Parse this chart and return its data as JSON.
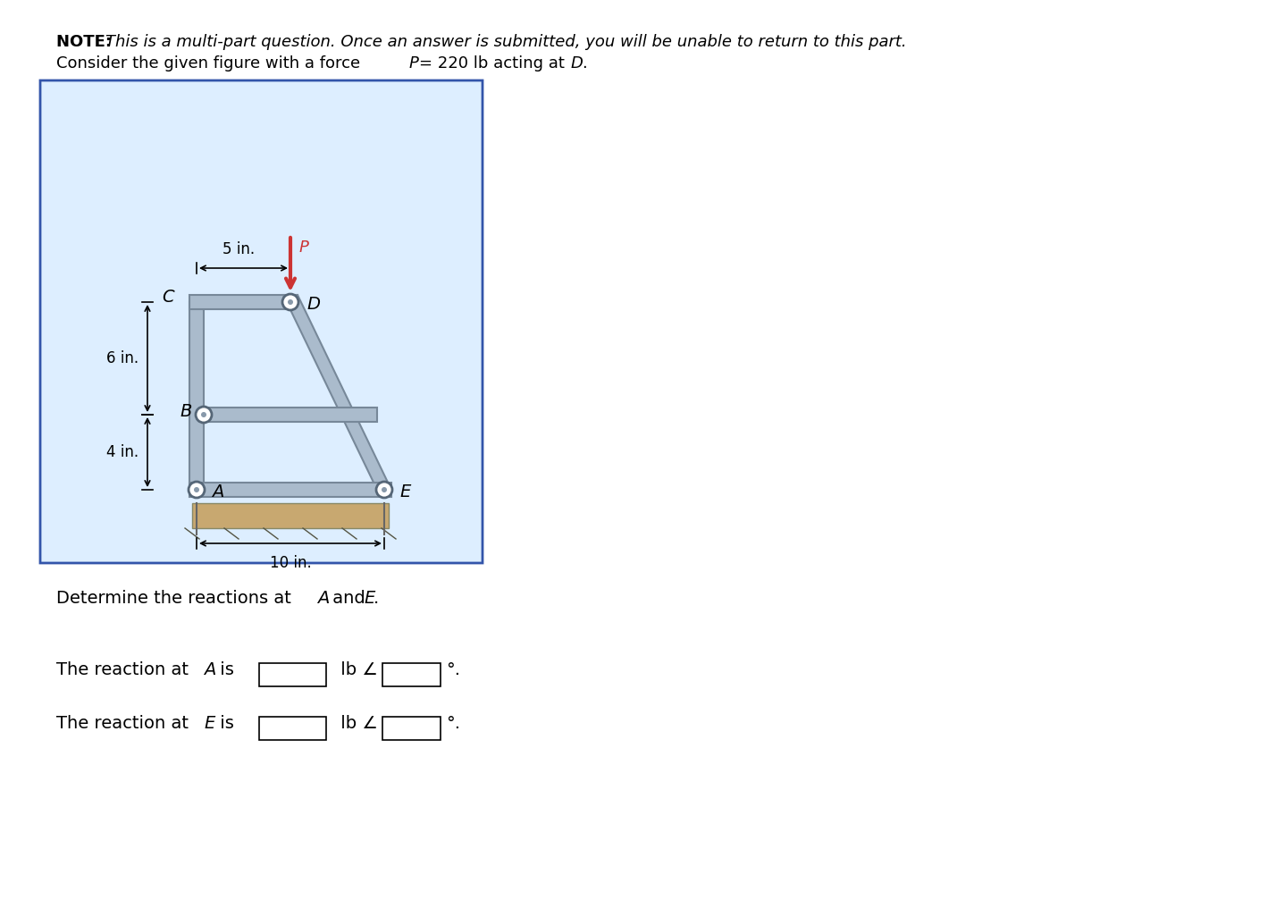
{
  "bg_color": "#ffffff",
  "panel_bg": "#ddeeff",
  "note_text_1": "NOTE: ",
  "note_italic": "This is a multi-part question. Once an answer is submitted, you will be unable to return to this part.",
  "note_text_2": "Consider the given figure with a force ",
  "note_italic_2": "P",
  "note_text_3": "= 220 lb acting at ",
  "note_italic_3": "D",
  "note_text_4": ".",
  "determine_text": "Determine the reactions at ",
  "determine_italic_A": "A",
  "determine_text2": " and ",
  "determine_italic_E": "E",
  "determine_text3": ".",
  "reaction_A_text": "The reaction at ",
  "reaction_E_text": "The reaction at ",
  "frame_border_color": "#3355aa",
  "struct_color": "#aabbcc",
  "ground_color": "#c8a870",
  "force_arrow_color": "#cc3333",
  "pin_color": "#888899",
  "dim_color": "#000000",
  "label_color": "#000000",
  "p_label_color": "#cc3333"
}
